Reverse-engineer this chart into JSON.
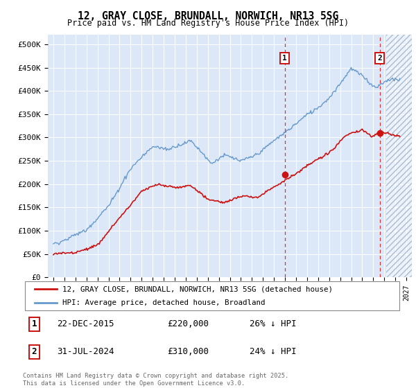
{
  "title": "12, GRAY CLOSE, BRUNDALL, NORWICH, NR13 5SG",
  "subtitle": "Price paid vs. HM Land Registry's House Price Index (HPI)",
  "xlim": [
    1994.5,
    2027.5
  ],
  "ylim": [
    0,
    520000
  ],
  "yticks": [
    0,
    50000,
    100000,
    150000,
    200000,
    250000,
    300000,
    350000,
    400000,
    450000,
    500000
  ],
  "ytick_labels": [
    "£0",
    "£50K",
    "£100K",
    "£150K",
    "£200K",
    "£250K",
    "£300K",
    "£350K",
    "£400K",
    "£450K",
    "£500K"
  ],
  "hpi_color": "#6699cc",
  "price_color": "#cc1111",
  "hatch_start": 2025.17,
  "marker1_x": 2015.97,
  "marker1_y": 220000,
  "marker2_x": 2024.58,
  "marker2_y": 310000,
  "legend_entry1": "12, GRAY CLOSE, BRUNDALL, NORWICH, NR13 5SG (detached house)",
  "legend_entry2": "HPI: Average price, detached house, Broadland",
  "annotation1_num": "1",
  "annotation1_date": "22-DEC-2015",
  "annotation1_price": "£220,000",
  "annotation1_hpi": "26% ↓ HPI",
  "annotation2_num": "2",
  "annotation2_date": "31-JUL-2024",
  "annotation2_price": "£310,000",
  "annotation2_hpi": "24% ↓ HPI",
  "footnote": "Contains HM Land Registry data © Crown copyright and database right 2025.\nThis data is licensed under the Open Government Licence v3.0.",
  "background_color": "#dce8f8",
  "fig_bg": "#ffffff"
}
